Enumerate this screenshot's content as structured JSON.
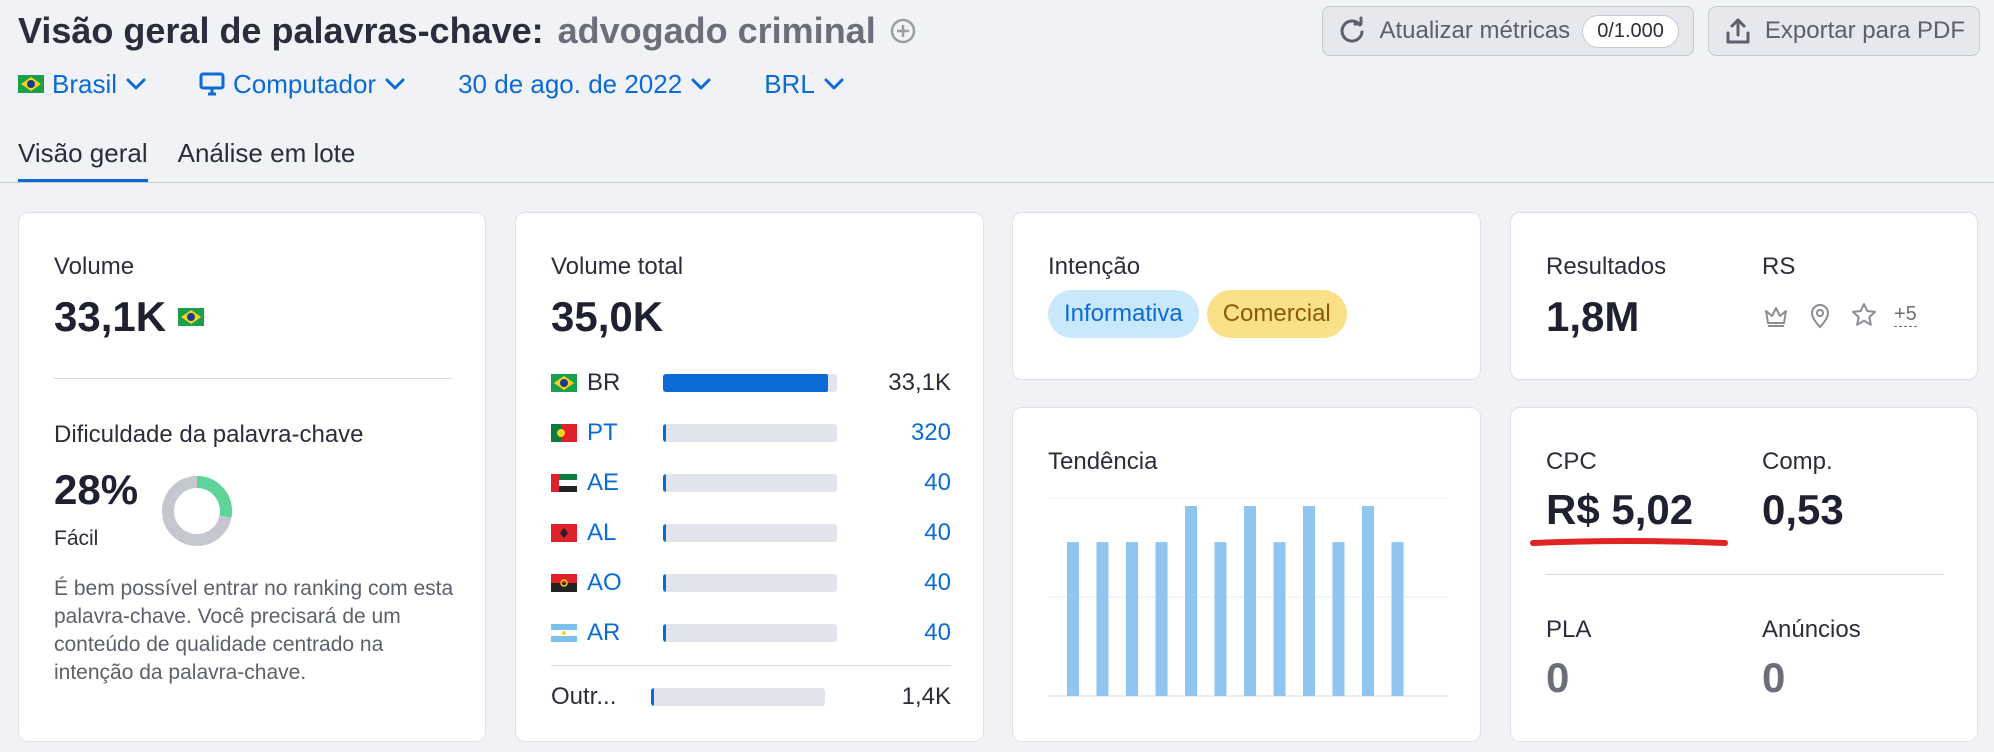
{
  "header": {
    "title": "Visão geral de palavras-chave:",
    "keyword": "advogado criminal",
    "refresh_label": "Atualizar métricas",
    "refresh_counter": "0/1.000",
    "export_label": "Exportar para PDF"
  },
  "filters": {
    "country": "Brasil",
    "device": "Computador",
    "date": "30 de ago. de 2022",
    "currency": "BRL"
  },
  "tabs": [
    "Visão geral",
    "Análise em lote"
  ],
  "volume": {
    "label": "Volume",
    "value": "33,1K"
  },
  "difficulty": {
    "label": "Dificuldade da palavra-chave",
    "value": "28%",
    "level": "Fácil",
    "percent": 28,
    "description": "É bem possível entrar no ranking com esta palavra-chave. Você precisará de um conteúdo de qualidade centrado na intenção da palavra-chave."
  },
  "total_volume": {
    "label": "Volume total",
    "value": "35,0K",
    "countries": [
      {
        "code": "BR",
        "value": "33,1K",
        "share": 0.95
      },
      {
        "code": "PT",
        "value": "320",
        "share": 0.02
      },
      {
        "code": "AE",
        "value": "40",
        "share": 0.02
      },
      {
        "code": "AL",
        "value": "40",
        "share": 0.02
      },
      {
        "code": "AO",
        "value": "40",
        "share": 0.02
      },
      {
        "code": "AR",
        "value": "40",
        "share": 0.02
      }
    ],
    "other": {
      "code": "Outr...",
      "value": "1,4K",
      "share": 0.02
    }
  },
  "intent": {
    "label": "Intenção",
    "tags": [
      "Informativa",
      "Comercial"
    ]
  },
  "trend": {
    "label": "Tendência",
    "values": [
      0.81,
      0.81,
      0.81,
      0.81,
      1.0,
      0.81,
      1.0,
      0.81,
      1.0,
      0.81,
      1.0,
      0.81
    ]
  },
  "results": {
    "label": "Resultados",
    "value": "1,8M",
    "rs_label": "RS",
    "rs_more": "+5"
  },
  "cpc": {
    "cpc_label": "CPC",
    "cpc_value": "R$ 5,02",
    "comp_label": "Comp.",
    "comp_value": "0,53",
    "pla_label": "PLA",
    "pla_value": "0",
    "ads_label": "Anúncios",
    "ads_value": "0"
  },
  "colors": {
    "accent": "#0b6bd6",
    "trend_bar": "#8fc5ef",
    "kd_green": "#5fd49a",
    "underline": "#e02424"
  }
}
